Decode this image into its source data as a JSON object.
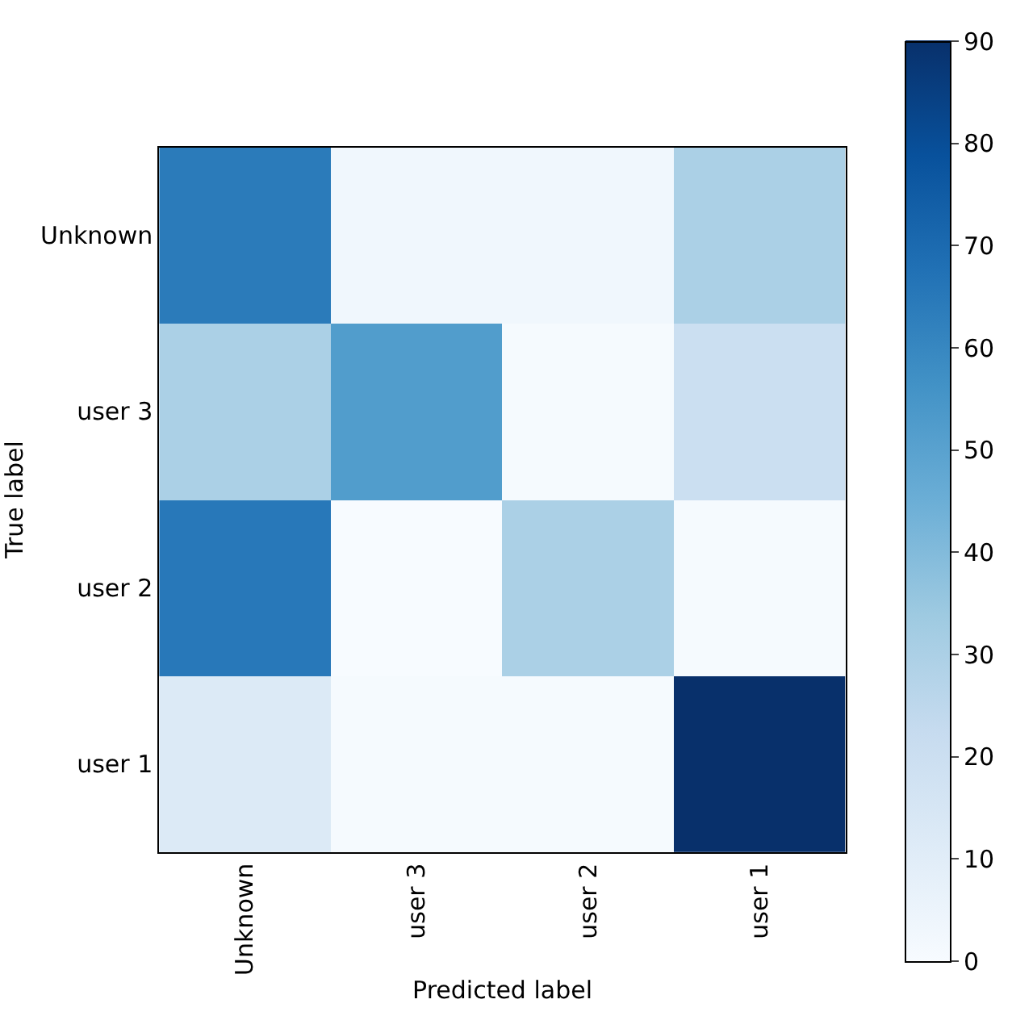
{
  "chart_data": {
    "type": "heatmap",
    "xlabel": "Predicted label",
    "ylabel": "True label",
    "categories": [
      "Unknown",
      "user 3",
      "user 2",
      "user 1"
    ],
    "y_categories": [
      "Unknown",
      "user 3",
      "user 2",
      "user 1"
    ],
    "cells": [
      [
        64,
        3,
        3,
        30
      ],
      [
        30,
        52,
        1,
        20
      ],
      [
        65,
        0,
        30,
        1
      ],
      [
        12,
        1,
        1,
        90
      ]
    ],
    "clim": [
      0,
      90
    ],
    "cticks": [
      0,
      10,
      20,
      30,
      40,
      50,
      60,
      70,
      80,
      90
    ]
  }
}
